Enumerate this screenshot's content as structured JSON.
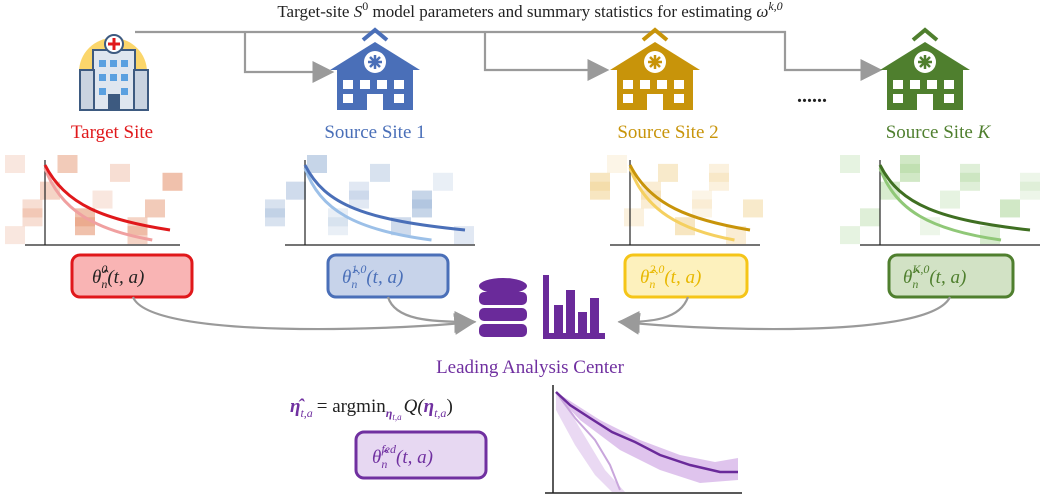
{
  "caption": {
    "prefix": "Target-site",
    "symbol": "S",
    "symbol_sup": "0",
    "middle": "model parameters and summary statistics for estimating",
    "omega": "ω",
    "omega_sup": "k,0"
  },
  "sites": [
    {
      "label": "Target Site",
      "estimator_sup": "0"
    },
    {
      "label": "Source Site 1",
      "estimator_sup": "1,0"
    },
    {
      "label": "Source Site 2",
      "estimator_sup": "2,0"
    },
    {
      "label": "Source Site",
      "label_var": "K",
      "estimator_sup": "K,0"
    }
  ],
  "estimator": {
    "symbol": "θ̂",
    "sub": "n",
    "args": "(t, a)"
  },
  "ellipsis": "......",
  "center": {
    "label": "Leading Analysis Center",
    "formula": {
      "lhs": "η̂",
      "lhs_sub": "t,a",
      "op": "= argmin",
      "op_sub": "η",
      "op_sub_sub": "t,a",
      "q": "Q(",
      "arg": "η",
      "arg_sub": "t,a",
      "close": ")"
    },
    "fed_sup": "fed"
  }
}
